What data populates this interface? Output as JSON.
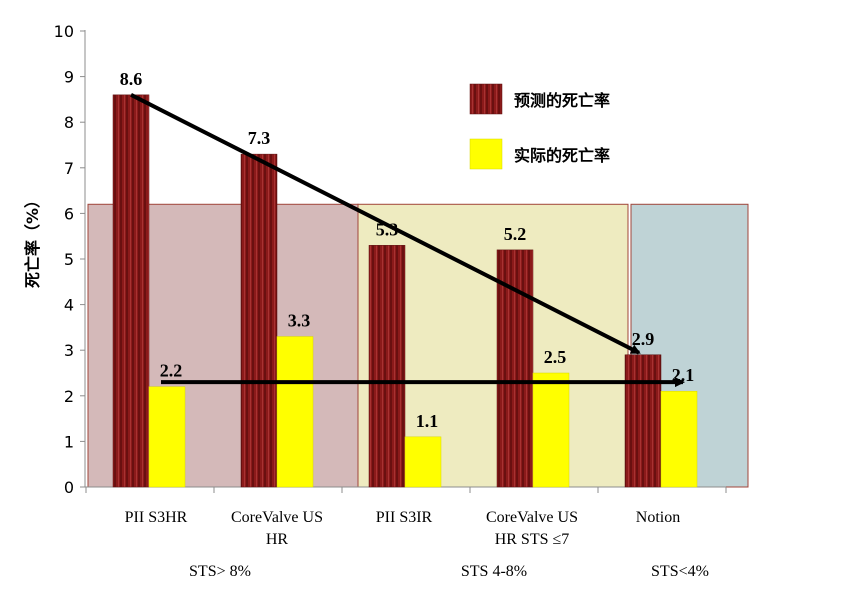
{
  "chart_data": {
    "type": "bar",
    "ylabel": "死亡率（%）",
    "ylim": [
      0,
      10
    ],
    "yticks": [
      0,
      1,
      2,
      3,
      4,
      5,
      6,
      7,
      8,
      9,
      10
    ],
    "categories": [
      {
        "lines": [
          "PII S3HR"
        ]
      },
      {
        "lines": [
          "CoreValve US",
          "HR"
        ]
      },
      {
        "lines": [
          "PII S3IR"
        ]
      },
      {
        "lines": [
          "CoreValve US",
          "HR STS ≤7"
        ]
      },
      {
        "lines": [
          "Notion"
        ]
      }
    ],
    "series": [
      {
        "name": "预测的死亡率",
        "color": "#8B1A1A",
        "values": [
          8.6,
          7.3,
          5.3,
          5.2,
          2.9
        ]
      },
      {
        "name": "实际的死亡率",
        "color": "#FFFF00",
        "values": [
          2.2,
          3.3,
          1.1,
          2.5,
          2.1
        ]
      }
    ],
    "groups": [
      {
        "label": "STS> 8%",
        "from": 0,
        "to": 1,
        "top": 6.2,
        "color": "#D4B9B9"
      },
      {
        "label": "STS  4-8%",
        "from": 2,
        "to": 3,
        "top": 6.2,
        "color": "#EEEBC0"
      },
      {
        "label": "STS<4%",
        "from": 4,
        "to": 4,
        "top": 6.2,
        "color": "#BFD3D6"
      }
    ],
    "legend_position": "top-right",
    "grid": false
  }
}
